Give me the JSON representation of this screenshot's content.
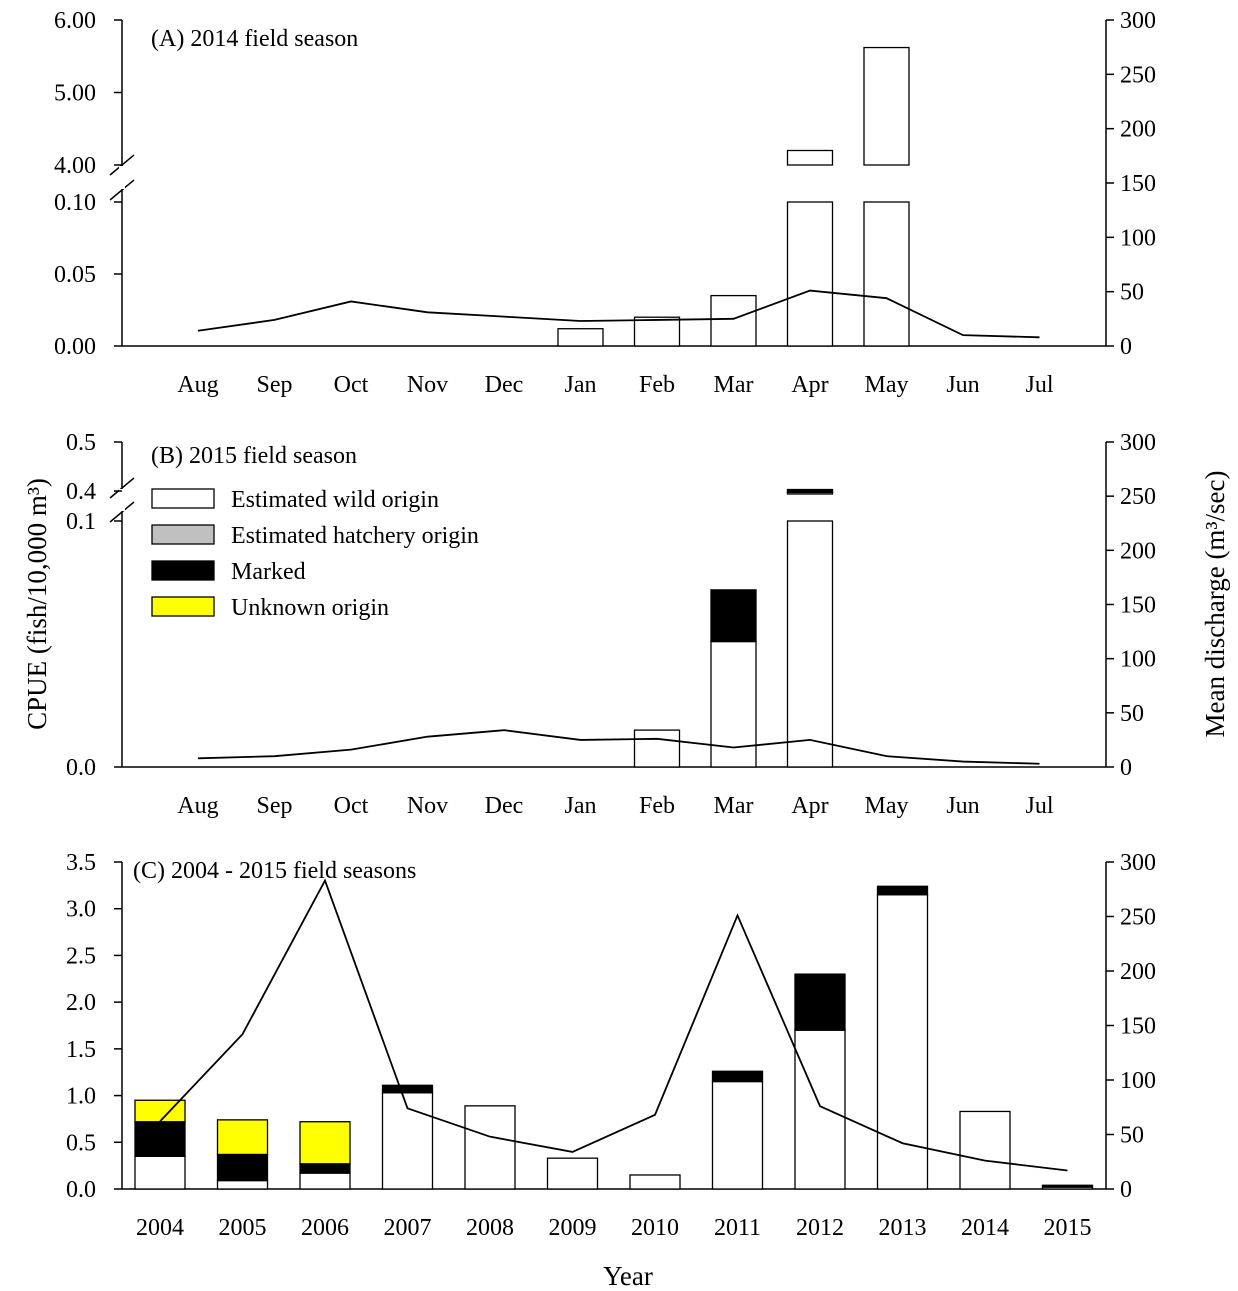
{
  "chart_data": [
    {
      "id": "A",
      "type": "bar",
      "title": "(A) 2014 field season",
      "categories": [
        "Aug",
        "Sep",
        "Oct",
        "Nov",
        "Dec",
        "Jan",
        "Feb",
        "Mar",
        "Apr",
        "May",
        "Jun",
        "Jul"
      ],
      "y_axis_break": {
        "lower": [
          0,
          0.1
        ],
        "upper": [
          4.0,
          6.0
        ]
      },
      "left_ticks": [
        "0.00",
        "0.05",
        "0.10",
        "4.00",
        "5.00",
        "6.00"
      ],
      "right_ticks": [
        "0",
        "50",
        "100",
        "150",
        "200",
        "250",
        "300"
      ],
      "right_ylim": [
        0,
        300
      ],
      "series": [
        {
          "name": "Estimated wild origin",
          "type": "bar",
          "color": "#ffffff",
          "values": [
            0,
            0,
            0,
            0,
            0,
            0.012,
            0.02,
            0.035,
            4.2,
            5.62,
            0,
            0
          ]
        },
        {
          "type": "line",
          "axis": "right",
          "values": [
            14,
            24,
            41,
            31,
            27,
            23,
            24,
            25,
            51,
            44,
            10,
            8
          ]
        }
      ]
    },
    {
      "id": "B",
      "type": "bar",
      "title": "(B) 2015 field season",
      "ylabel": "CPUE (fish/10,000 m³)",
      "y2label": "Mean discharge (m³/sec)",
      "categories": [
        "Aug",
        "Sep",
        "Oct",
        "Nov",
        "Dec",
        "Jan",
        "Feb",
        "Mar",
        "Apr",
        "May",
        "Jun",
        "Jul"
      ],
      "y_axis_break": {
        "lower": [
          0,
          0.1
        ],
        "upper": [
          0.4,
          0.5
        ]
      },
      "left_ticks": [
        "0.0",
        "0.1",
        "0.4",
        "0.5"
      ],
      "right_ticks": [
        "0",
        "50",
        "100",
        "150",
        "200",
        "250",
        "300"
      ],
      "right_ylim": [
        0,
        300
      ],
      "legend": {
        "placement": "top-left",
        "items": [
          {
            "label": "Estimated wild origin",
            "color": "#ffffff"
          },
          {
            "label": "Estimated hatchery origin",
            "color": "#c0c0c0"
          },
          {
            "label": "Marked",
            "color": "#000000"
          },
          {
            "label": "Unknown origin",
            "color": "#ffff00"
          }
        ]
      },
      "series": [
        {
          "name": "Estimated wild origin",
          "type": "bar",
          "color": "#ffffff",
          "values": [
            0,
            0,
            0,
            0,
            0,
            0,
            0.015,
            0.051,
            0.4,
            0,
            0,
            0
          ]
        },
        {
          "name": "Marked",
          "type": "bar",
          "color": "#000000",
          "values": [
            0,
            0,
            0,
            0,
            0,
            0,
            0,
            0.021,
            0.003,
            0,
            0,
            0
          ]
        },
        {
          "type": "line",
          "axis": "right",
          "values": [
            8,
            10,
            16,
            28,
            34,
            25,
            26,
            18,
            25,
            10,
            5,
            3
          ]
        }
      ]
    },
    {
      "id": "C",
      "type": "bar",
      "title": "(C) 2004 - 2015 field seasons",
      "xlabel": "Year",
      "categories": [
        "2004",
        "2005",
        "2006",
        "2007",
        "2008",
        "2009",
        "2010",
        "2011",
        "2012",
        "2013",
        "2014",
        "2015"
      ],
      "ylim": [
        0,
        3.5
      ],
      "left_ticks": [
        "0.0",
        "0.5",
        "1.0",
        "1.5",
        "2.0",
        "2.5",
        "3.0",
        "3.5"
      ],
      "right_ticks": [
        "0",
        "50",
        "100",
        "150",
        "200",
        "250",
        "300"
      ],
      "right_ylim": [
        0,
        300
      ],
      "series": [
        {
          "name": "Estimated wild origin",
          "type": "bar",
          "color": "#ffffff",
          "values": [
            0.35,
            0.09,
            0.17,
            1.03,
            0.89,
            0.33,
            0.15,
            1.15,
            1.7,
            3.15,
            0.83,
            0.02
          ]
        },
        {
          "name": "Marked",
          "type": "bar",
          "color": "#000000",
          "values": [
            0.37,
            0.28,
            0.1,
            0.08,
            0,
            0,
            0,
            0.11,
            0.6,
            0.09,
            0,
            0.02
          ]
        },
        {
          "name": "Unknown origin",
          "type": "bar",
          "color": "#ffff00",
          "values": [
            0.23,
            0.37,
            0.45,
            0,
            0,
            0,
            0,
            0,
            0,
            0,
            0,
            0
          ]
        },
        {
          "type": "line",
          "axis": "right",
          "values": [
            62,
            142,
            283,
            74,
            48,
            34,
            68,
            251,
            76,
            42,
            26,
            17
          ]
        }
      ]
    }
  ]
}
